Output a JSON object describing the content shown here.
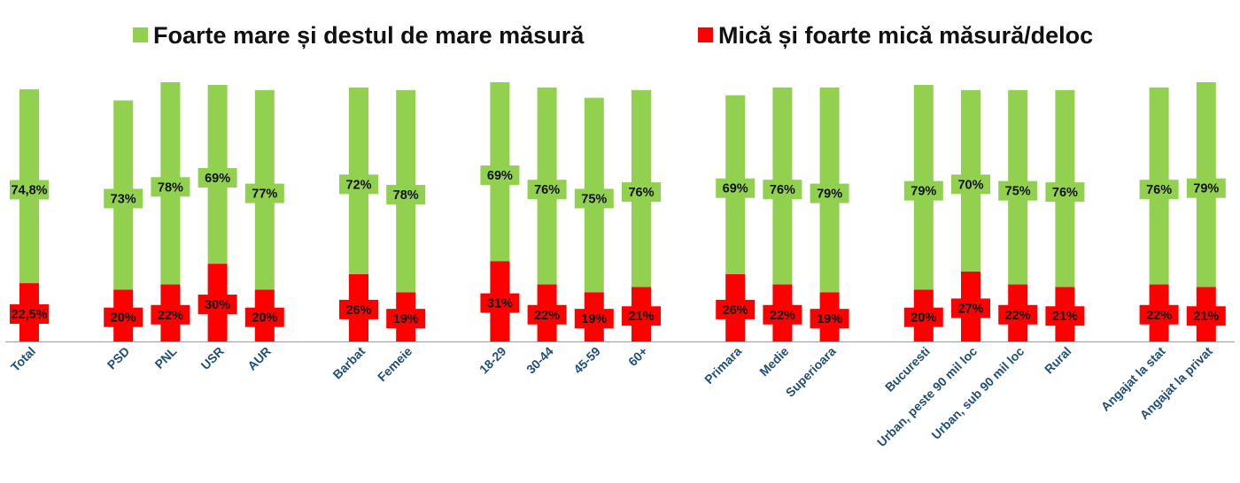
{
  "chart_data": {
    "type": "bar",
    "stacked": true,
    "categories": [
      "Total",
      "PSD",
      "PNL",
      "USR",
      "AUR",
      "Barbat",
      "Femeie",
      "18-29",
      "30-44",
      "45-59",
      "60+",
      "Primara",
      "Medie",
      "Superioara",
      "Bucuresti",
      "Urban, peste 90 mil loc",
      "Urban, sub 90 mil loc",
      "Rural",
      "Angajat la stat",
      "Angajat la privat"
    ],
    "groups": [
      [
        0
      ],
      [
        1,
        2,
        3,
        4
      ],
      [
        5,
        6
      ],
      [
        7,
        8,
        9,
        10
      ],
      [
        11,
        12,
        13
      ],
      [
        14,
        15,
        16,
        17
      ],
      [
        18,
        19
      ]
    ],
    "series": [
      {
        "name": "Mică și foarte mică măsură/deloc",
        "color": "#ff0000",
        "values": [
          22.5,
          20,
          22,
          30,
          20,
          26,
          19,
          31,
          22,
          19,
          21,
          26,
          22,
          19,
          20,
          27,
          22,
          21,
          22,
          21
        ],
        "labels": [
          "22,5%",
          "20%",
          "22%",
          "30%",
          "20%",
          "26%",
          "19%",
          "31%",
          "22%",
          "19%",
          "21%",
          "26%",
          "22%",
          "19%",
          "20%",
          "27%",
          "22%",
          "21%",
          "22%",
          "21%"
        ]
      },
      {
        "name": "Foarte mare și destul de mare măsură",
        "color": "#92d050",
        "values": [
          74.8,
          73,
          78,
          69,
          77,
          72,
          78,
          69,
          76,
          75,
          76,
          69,
          76,
          79,
          79,
          70,
          75,
          76,
          76,
          79
        ],
        "labels": [
          "74,8%",
          "73%",
          "78%",
          "69%",
          "77%",
          "72%",
          "78%",
          "69%",
          "76%",
          "75%",
          "76%",
          "69%",
          "76%",
          "79%",
          "79%",
          "70%",
          "75%",
          "76%",
          "76%",
          "79%"
        ]
      }
    ],
    "legend": {
      "position": "top",
      "items": [
        {
          "label": "Foarte mare și destul de mare măsură",
          "color": "#92d050"
        },
        {
          "label": "Mică și foarte mică măsură/deloc",
          "color": "#ff0000"
        }
      ]
    },
    "title": "",
    "xlabel": "",
    "ylabel": "",
    "ylim": [
      0,
      100
    ],
    "grid": false
  }
}
